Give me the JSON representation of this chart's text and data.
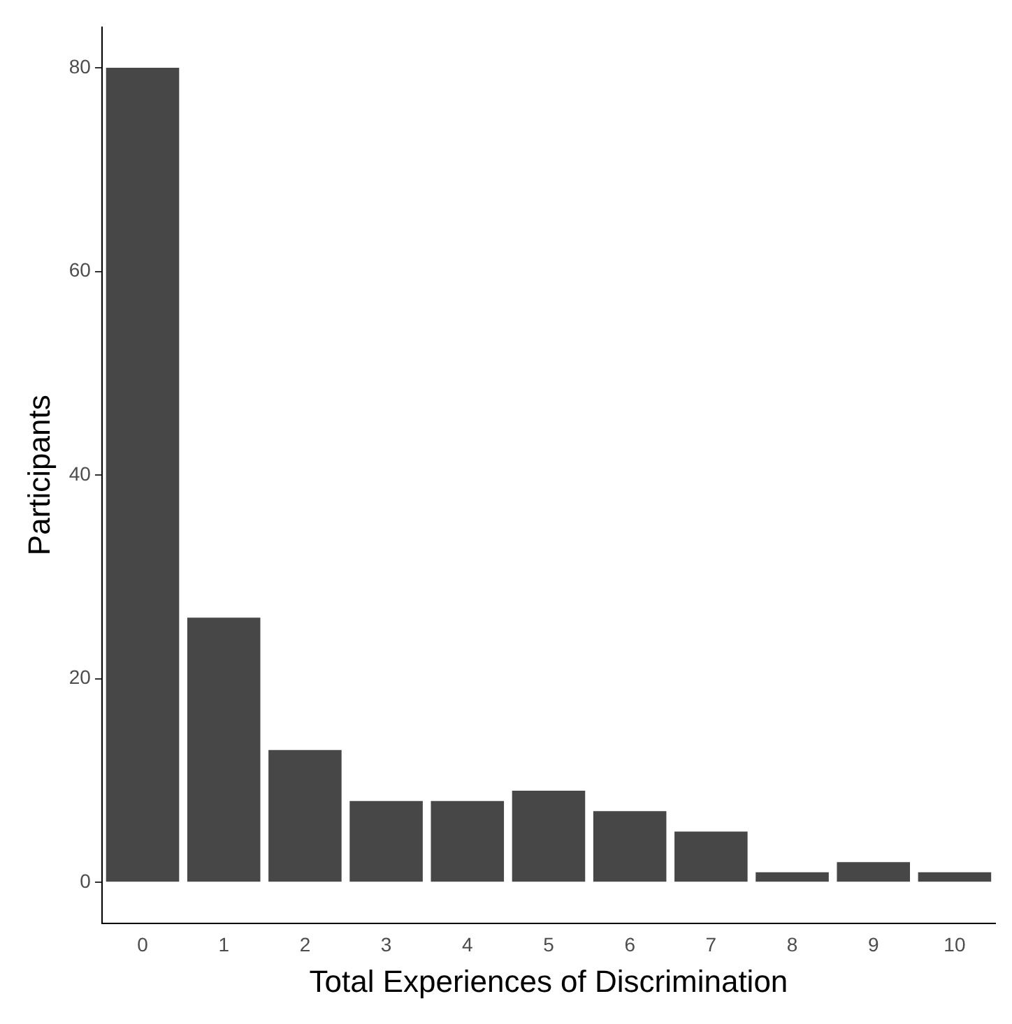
{
  "chart_data": {
    "type": "bar",
    "xlabel": "Total Experiences of Discrimination",
    "ylabel": "Participants",
    "categories": [
      "0",
      "1",
      "2",
      "3",
      "4",
      "5",
      "6",
      "7",
      "8",
      "9",
      "10"
    ],
    "values": [
      80,
      26,
      13,
      8,
      8,
      9,
      7,
      5,
      1,
      2,
      1
    ],
    "color": "#474747",
    "ylim": [
      -4,
      84
    ],
    "yticks": [
      0,
      20,
      40,
      60,
      80
    ],
    "grid": false,
    "legend": false
  }
}
